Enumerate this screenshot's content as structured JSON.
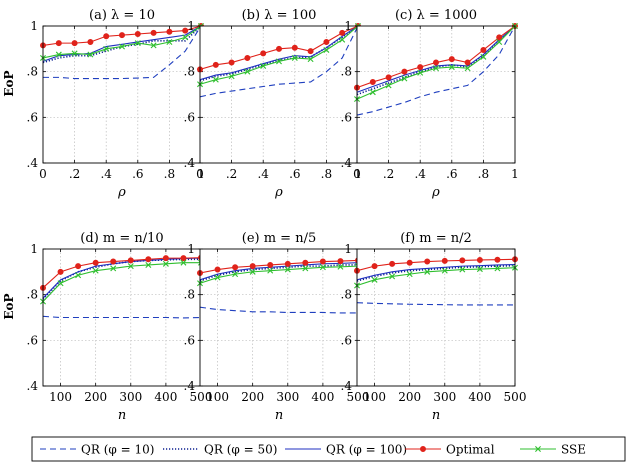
{
  "colors": {
    "qr10": "#1f3fbf",
    "qr50": "#0b1f8f",
    "qr100": "#1f2fc0",
    "optimal": "#e0231b",
    "sse": "#2fbf2f"
  },
  "legend": [
    {
      "key": "qr10",
      "label": "QR (φ = 10)"
    },
    {
      "key": "qr50",
      "label": "QR (φ = 50)"
    },
    {
      "key": "qr100",
      "label": "QR (φ = 100)"
    },
    {
      "key": "optimal",
      "label": "Optimal"
    },
    {
      "key": "sse",
      "label": "SSE"
    }
  ],
  "ylabel": "EoP",
  "chart_data": [
    {
      "type": "line",
      "title": "(a) λ = 10",
      "xlabel": "ρ",
      "ylabel": "EoP",
      "xlim": [
        0,
        1
      ],
      "ylim": [
        0.4,
        1
      ],
      "xticks": [
        0,
        0.2,
        0.4,
        0.6,
        0.8,
        1
      ],
      "xticklabels": [
        "0",
        ".2",
        ".4",
        ".6",
        ".8",
        "1"
      ],
      "yticks": [
        0.4,
        0.6,
        0.8,
        1
      ],
      "yticklabels": [
        ".4",
        ".6",
        ".8",
        "1"
      ],
      "x": [
        0,
        0.1,
        0.2,
        0.3,
        0.4,
        0.5,
        0.6,
        0.7,
        0.8,
        0.9,
        1.0
      ],
      "series": [
        {
          "key": "qr10",
          "name": "QR (φ = 10)",
          "values": [
            0.775,
            0.775,
            0.77,
            0.77,
            0.77,
            0.77,
            0.772,
            0.775,
            0.83,
            0.89,
            1.0
          ]
        },
        {
          "key": "qr50",
          "name": "QR (φ = 50)",
          "values": [
            0.84,
            0.86,
            0.87,
            0.87,
            0.89,
            0.91,
            0.92,
            0.935,
            0.935,
            0.935,
            1.0
          ]
        },
        {
          "key": "qr100",
          "name": "QR (φ = 100)",
          "values": [
            0.845,
            0.87,
            0.875,
            0.88,
            0.91,
            0.92,
            0.93,
            0.94,
            0.95,
            0.96,
            1.0
          ]
        },
        {
          "key": "optimal",
          "name": "Optimal",
          "values": [
            0.915,
            0.925,
            0.925,
            0.93,
            0.955,
            0.96,
            0.965,
            0.97,
            0.975,
            0.98,
            1.0
          ]
        },
        {
          "key": "sse",
          "name": "SSE",
          "values": [
            0.86,
            0.875,
            0.88,
            0.875,
            0.9,
            0.91,
            0.925,
            0.915,
            0.93,
            0.95,
            1.0
          ]
        }
      ]
    },
    {
      "type": "line",
      "title": "(b) λ = 100",
      "xlabel": "ρ",
      "ylabel": "",
      "xlim": [
        0,
        1
      ],
      "ylim": [
        0.4,
        1
      ],
      "xticks": [
        0,
        0.2,
        0.4,
        0.6,
        0.8,
        1
      ],
      "xticklabels": [
        "0",
        ".2",
        ".4",
        ".6",
        ".8",
        "1"
      ],
      "yticks": [
        0.4,
        0.6,
        0.8,
        1
      ],
      "yticklabels": [
        ".4",
        ".6",
        ".8",
        "1"
      ],
      "x": [
        0,
        0.1,
        0.2,
        0.3,
        0.4,
        0.5,
        0.6,
        0.7,
        0.8,
        0.9,
        1.0
      ],
      "series": [
        {
          "key": "qr10",
          "name": "QR (φ = 10)",
          "values": [
            0.69,
            0.705,
            0.715,
            0.725,
            0.735,
            0.745,
            0.75,
            0.755,
            0.8,
            0.86,
            1.0
          ]
        },
        {
          "key": "qr50",
          "name": "QR (φ = 50)",
          "values": [
            0.76,
            0.78,
            0.79,
            0.81,
            0.83,
            0.85,
            0.86,
            0.865,
            0.905,
            0.95,
            1.0
          ]
        },
        {
          "key": "qr100",
          "name": "QR (φ = 100)",
          "values": [
            0.765,
            0.785,
            0.795,
            0.815,
            0.835,
            0.855,
            0.87,
            0.865,
            0.905,
            0.955,
            1.0
          ]
        },
        {
          "key": "optimal",
          "name": "Optimal",
          "values": [
            0.81,
            0.83,
            0.84,
            0.86,
            0.88,
            0.9,
            0.905,
            0.89,
            0.93,
            0.97,
            1.0
          ]
        },
        {
          "key": "sse",
          "name": "SSE",
          "values": [
            0.745,
            0.765,
            0.78,
            0.8,
            0.825,
            0.845,
            0.86,
            0.855,
            0.895,
            0.94,
            1.0
          ]
        }
      ]
    },
    {
      "type": "line",
      "title": "(c) λ = 1000",
      "xlabel": "ρ",
      "ylabel": "",
      "xlim": [
        0,
        1
      ],
      "ylim": [
        0.4,
        1
      ],
      "xticks": [
        0,
        0.2,
        0.4,
        0.6,
        0.8,
        1
      ],
      "xticklabels": [
        "0",
        ".2",
        ".4",
        ".6",
        ".8",
        "1"
      ],
      "yticks": [
        0.4,
        0.6,
        0.8,
        1
      ],
      "yticklabels": [
        ".4",
        ".6",
        ".8",
        "1"
      ],
      "x": [
        0,
        0.1,
        0.2,
        0.3,
        0.4,
        0.5,
        0.6,
        0.7,
        0.8,
        0.9,
        1.0
      ],
      "series": [
        {
          "key": "qr10",
          "name": "QR (φ = 10)",
          "values": [
            0.61,
            0.625,
            0.645,
            0.665,
            0.69,
            0.71,
            0.725,
            0.74,
            0.8,
            0.875,
            1.0
          ]
        },
        {
          "key": "qr50",
          "name": "QR (φ = 50)",
          "values": [
            0.7,
            0.725,
            0.75,
            0.775,
            0.8,
            0.82,
            0.83,
            0.82,
            0.87,
            0.935,
            1.0
          ]
        },
        {
          "key": "qr100",
          "name": "QR (φ = 100)",
          "values": [
            0.71,
            0.735,
            0.76,
            0.785,
            0.805,
            0.825,
            0.83,
            0.825,
            0.875,
            0.94,
            1.0
          ]
        },
        {
          "key": "optimal",
          "name": "Optimal",
          "values": [
            0.73,
            0.755,
            0.775,
            0.8,
            0.82,
            0.84,
            0.855,
            0.84,
            0.895,
            0.95,
            1.0
          ]
        },
        {
          "key": "sse",
          "name": "SSE",
          "values": [
            0.68,
            0.71,
            0.74,
            0.77,
            0.795,
            0.815,
            0.82,
            0.815,
            0.865,
            0.93,
            1.0
          ]
        }
      ]
    },
    {
      "type": "line",
      "title": "(d) m = n/10",
      "xlabel": "n",
      "ylabel": "EoP",
      "xlim": [
        50,
        500
      ],
      "ylim": [
        0.4,
        1
      ],
      "xticks": [
        100,
        200,
        300,
        400,
        500
      ],
      "xticklabels": [
        "100",
        "200",
        "300",
        "400",
        "500"
      ],
      "yticks": [
        0.4,
        0.6,
        0.8,
        1
      ],
      "yticklabels": [
        ".4",
        ".6",
        ".8",
        "1"
      ],
      "x": [
        50,
        100,
        150,
        200,
        250,
        300,
        350,
        400,
        450,
        500
      ],
      "series": [
        {
          "key": "qr10",
          "name": "QR (φ = 10)",
          "values": [
            0.705,
            0.7,
            0.7,
            0.7,
            0.7,
            0.7,
            0.7,
            0.7,
            0.698,
            0.7
          ]
        },
        {
          "key": "qr50",
          "name": "QR (φ = 50)",
          "values": [
            0.78,
            0.86,
            0.9,
            0.92,
            0.935,
            0.945,
            0.95,
            0.952,
            0.955,
            0.955
          ]
        },
        {
          "key": "qr100",
          "name": "QR (φ = 100)",
          "values": [
            0.785,
            0.865,
            0.9,
            0.925,
            0.935,
            0.945,
            0.95,
            0.955,
            0.958,
            0.96
          ]
        },
        {
          "key": "optimal",
          "name": "Optimal",
          "values": [
            0.83,
            0.9,
            0.925,
            0.94,
            0.945,
            0.95,
            0.955,
            0.96,
            0.96,
            0.962
          ]
        },
        {
          "key": "sse",
          "name": "SSE",
          "values": [
            0.77,
            0.85,
            0.885,
            0.905,
            0.915,
            0.925,
            0.93,
            0.935,
            0.94,
            0.94
          ]
        }
      ]
    },
    {
      "type": "line",
      "title": "(e) m = n/5",
      "xlabel": "n",
      "ylabel": "",
      "xlim": [
        50,
        500
      ],
      "ylim": [
        0.4,
        1
      ],
      "xticks": [
        100,
        200,
        300,
        400,
        500
      ],
      "xticklabels": [
        "100",
        "200",
        "300",
        "400",
        "500"
      ],
      "yticks": [
        0.4,
        0.6,
        0.8,
        1
      ],
      "yticklabels": [
        ".4",
        ".6",
        ".8",
        "1"
      ],
      "x": [
        50,
        100,
        150,
        200,
        250,
        300,
        350,
        400,
        450,
        500
      ],
      "series": [
        {
          "key": "qr10",
          "name": "QR (φ = 10)",
          "values": [
            0.745,
            0.735,
            0.73,
            0.725,
            0.725,
            0.722,
            0.722,
            0.722,
            0.72,
            0.72
          ]
        },
        {
          "key": "qr50",
          "name": "QR (φ = 50)",
          "values": [
            0.86,
            0.885,
            0.9,
            0.91,
            0.915,
            0.92,
            0.925,
            0.925,
            0.93,
            0.93
          ]
        },
        {
          "key": "qr100",
          "name": "QR (φ = 100)",
          "values": [
            0.865,
            0.89,
            0.905,
            0.915,
            0.92,
            0.925,
            0.93,
            0.935,
            0.937,
            0.94
          ]
        },
        {
          "key": "optimal",
          "name": "Optimal",
          "values": [
            0.895,
            0.91,
            0.92,
            0.925,
            0.93,
            0.935,
            0.94,
            0.945,
            0.947,
            0.95
          ]
        },
        {
          "key": "sse",
          "name": "SSE",
          "values": [
            0.85,
            0.875,
            0.89,
            0.9,
            0.905,
            0.91,
            0.915,
            0.92,
            0.922,
            0.925
          ]
        }
      ]
    },
    {
      "type": "line",
      "title": "(f) m = n/2",
      "xlabel": "n",
      "ylabel": "",
      "xlim": [
        50,
        500
      ],
      "ylim": [
        0.4,
        1
      ],
      "xticks": [
        100,
        200,
        300,
        400,
        500
      ],
      "xticklabels": [
        "100",
        "200",
        "300",
        "400",
        "500"
      ],
      "yticks": [
        0.4,
        0.6,
        0.8,
        1
      ],
      "yticklabels": [
        ".4",
        ".6",
        ".8",
        "1"
      ],
      "x": [
        50,
        100,
        150,
        200,
        250,
        300,
        350,
        400,
        450,
        500
      ],
      "series": [
        {
          "key": "qr10",
          "name": "QR (φ = 10)",
          "values": [
            0.765,
            0.762,
            0.76,
            0.758,
            0.757,
            0.756,
            0.755,
            0.755,
            0.755,
            0.755
          ]
        },
        {
          "key": "qr50",
          "name": "QR (φ = 50)",
          "values": [
            0.86,
            0.88,
            0.895,
            0.905,
            0.91,
            0.915,
            0.92,
            0.922,
            0.925,
            0.927
          ]
        },
        {
          "key": "qr100",
          "name": "QR (φ = 100)",
          "values": [
            0.865,
            0.885,
            0.9,
            0.91,
            0.915,
            0.92,
            0.925,
            0.927,
            0.93,
            0.932
          ]
        },
        {
          "key": "optimal",
          "name": "Optimal",
          "values": [
            0.905,
            0.925,
            0.935,
            0.94,
            0.945,
            0.948,
            0.95,
            0.952,
            0.953,
            0.955
          ]
        },
        {
          "key": "sse",
          "name": "SSE",
          "values": [
            0.84,
            0.865,
            0.88,
            0.89,
            0.9,
            0.905,
            0.91,
            0.912,
            0.915,
            0.918
          ]
        }
      ]
    }
  ]
}
